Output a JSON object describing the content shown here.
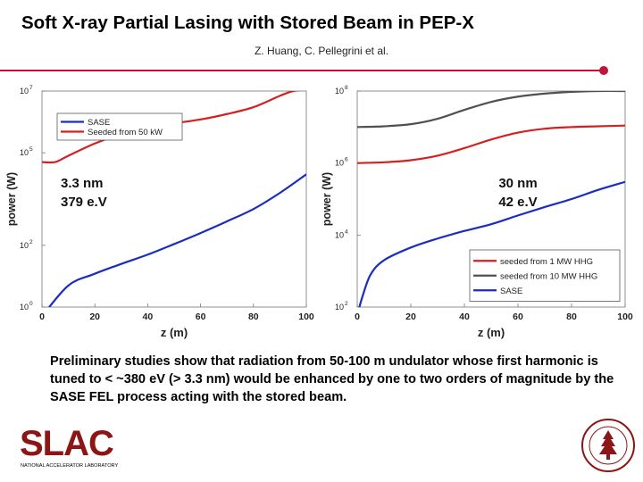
{
  "slide": {
    "title": "Soft X-ray Partial Lasing with Stored Beam in PEP-X",
    "authors": "Z. Huang, C. Pellegrini et al.",
    "paragraph": "Preliminary studies show that radiation from 50-100 m undulator whose first harmonic is tuned to < ~380 eV (> 3.3 nm) would be enhanced by one to two orders of magnitude by the SASE FEL process acting with the stored beam.",
    "accent_color": "#c0143c"
  },
  "logo": {
    "text": "SLAC",
    "subtext": "NATIONAL ACCELERATOR LABORATORY",
    "color": "#8c1515"
  },
  "seal": {
    "icon": "stanford-seal-icon",
    "color": "#8c1515"
  },
  "chart_data": [
    {
      "type": "line",
      "xlabel": "z (m)",
      "ylabel": "power (W)",
      "xlim": [
        0,
        100
      ],
      "xticks": [
        0,
        20,
        40,
        60,
        80,
        100
      ],
      "yscale": "log",
      "ylim": [
        1,
        10000000
      ],
      "yticks": [
        {
          "v": 1,
          "t": "10",
          "e": "0"
        },
        {
          "v": 100,
          "t": "10",
          "e": "2"
        },
        {
          "v": 100000,
          "t": "10",
          "e": "5"
        },
        {
          "v": 10000000,
          "t": "10",
          "e": "7"
        }
      ],
      "legend_position": "top-left",
      "annotation": [
        "3.3 nm",
        "379 e.V"
      ],
      "series": [
        {
          "name": "SASE",
          "color": "#1a2dbf",
          "x": [
            0,
            10,
            20,
            30,
            40,
            50,
            60,
            70,
            80,
            90,
            100
          ],
          "y": [
            0.5,
            5,
            12,
            25,
            50,
            110,
            250,
            600,
            1500,
            5000,
            20000
          ]
        },
        {
          "name": "Seeded from 50 kW",
          "color": "#d42020",
          "x": [
            0,
            5,
            10,
            20,
            30,
            40,
            50,
            60,
            70,
            80,
            90,
            95,
            100
          ],
          "y": [
            50000,
            50000,
            80000,
            200000,
            400000,
            650000,
            900000,
            1200000,
            1800000,
            3000000,
            7000000,
            10000000,
            11000000
          ]
        }
      ]
    },
    {
      "type": "line",
      "xlabel": "z (m)",
      "ylabel": "power (W)",
      "xlim": [
        0,
        100
      ],
      "xticks": [
        0,
        20,
        40,
        60,
        80,
        100
      ],
      "yscale": "log",
      "ylim": [
        100,
        100000000
      ],
      "yticks": [
        {
          "v": 100,
          "t": "10",
          "e": "2"
        },
        {
          "v": 10000,
          "t": "10",
          "e": "4"
        },
        {
          "v": 1000000,
          "t": "10",
          "e": "6"
        },
        {
          "v": 100000000,
          "t": "10",
          "e": "8"
        }
      ],
      "legend_position": "bottom-right",
      "annotation": [
        "30 nm",
        "42 e.V"
      ],
      "series": [
        {
          "name": "seeded from 1 MW HHG",
          "color": "#d42020",
          "x": [
            0,
            10,
            20,
            30,
            40,
            50,
            60,
            70,
            80,
            90,
            100
          ],
          "y": [
            1000000,
            1050000,
            1200000,
            1600000,
            2600000,
            4500000,
            7000000,
            9000000,
            10000000,
            10500000,
            11000000
          ]
        },
        {
          "name": "seeded from 10 MW HHG",
          "color": "#505050",
          "x": [
            0,
            10,
            20,
            30,
            40,
            50,
            60,
            70,
            80,
            90,
            100
          ],
          "y": [
            10000000,
            10500000,
            12000000,
            17000000,
            30000000,
            50000000,
            70000000,
            85000000,
            95000000,
            100000000,
            100000000
          ]
        },
        {
          "name": "SASE",
          "color": "#1a2dbf",
          "x": [
            0,
            2,
            5,
            10,
            20,
            30,
            40,
            50,
            60,
            70,
            80,
            90,
            100
          ],
          "y": [
            60,
            200,
            800,
            2000,
            4500,
            8000,
            13000,
            20000,
            35000,
            60000,
            100000,
            180000,
            300000
          ]
        }
      ]
    }
  ]
}
